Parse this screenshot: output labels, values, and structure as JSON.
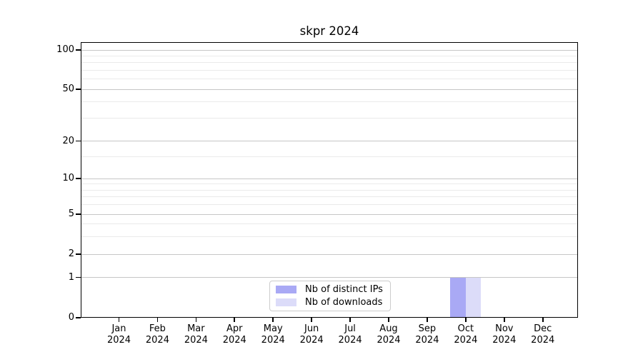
{
  "chart_data": {
    "type": "bar",
    "title": "skpr 2024",
    "year": "2024",
    "categories": [
      "Jan",
      "Feb",
      "Mar",
      "Apr",
      "May",
      "Jun",
      "Jul",
      "Aug",
      "Sep",
      "Oct",
      "Nov",
      "Dec"
    ],
    "series": [
      {
        "name": "Nb of distinct IPs",
        "color": "#a9a9f5",
        "values": [
          0,
          0,
          0,
          0,
          0,
          0,
          0,
          0,
          0,
          1,
          0,
          0
        ]
      },
      {
        "name": "Nb of downloads",
        "color": "#dcdcf9",
        "values": [
          0,
          0,
          0,
          0,
          0,
          0,
          0,
          0,
          0,
          1,
          0,
          0
        ]
      }
    ],
    "yscale": "symlog",
    "ylim": [
      0,
      110
    ],
    "y_major_ticks": [
      0,
      1,
      2,
      5,
      10,
      20,
      50,
      100
    ],
    "y_minor_gridlines": [
      3,
      4,
      6,
      7,
      8,
      9,
      15,
      30,
      40,
      60,
      70,
      80,
      90
    ],
    "grid": true,
    "legend_position": "lower-center",
    "colors": {
      "axis": "#000000",
      "grid_major": "#c6c6c6",
      "grid_minor": "#eaeaea",
      "background": "#ffffff",
      "legend_border": "#cccccc"
    }
  }
}
